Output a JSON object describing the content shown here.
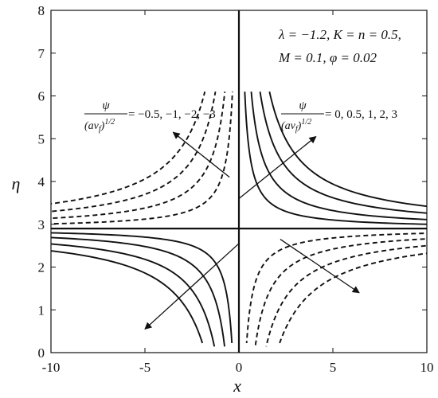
{
  "chart_data": {
    "type": "line",
    "title": "",
    "xlabel": "x",
    "ylabel": "η",
    "xlim": [
      -10,
      10
    ],
    "ylim": [
      0,
      8
    ],
    "xticks": [
      -10,
      -5,
      0,
      5,
      10
    ],
    "yticks": [
      0,
      1,
      2,
      3,
      4,
      5,
      6,
      7,
      8
    ],
    "grid": false,
    "parameters": {
      "line1": "λ = −1.2, K = n = 0.5,",
      "line2": "M = 0.1, φ = 0.02"
    },
    "annotations": [
      {
        "label_num": "ψ",
        "label_den": "(aν",
        "label_den_sub": "f",
        "label_den_tail": ")",
        "label_den_sup": "1/2",
        "label_rhs": " = −0.5, −1, −2, −3",
        "style": "dashed"
      },
      {
        "label_num": "ψ",
        "label_den": "(aν",
        "label_den_sub": "f",
        "label_den_tail": ")",
        "label_den_sup": "1/2",
        "label_rhs": " = 0, 0.5, 1, 2, 3",
        "style": "solid"
      }
    ],
    "model": {
      "stagnation_eta": 2.9
    },
    "series": [
      {
        "style": "solid",
        "psi": 0
      },
      {
        "style": "solid",
        "psi": 0.5
      },
      {
        "style": "solid",
        "psi": 1
      },
      {
        "style": "solid",
        "psi": 2
      },
      {
        "style": "solid",
        "psi": 3
      },
      {
        "style": "dashed",
        "psi": -0.5
      },
      {
        "style": "dashed",
        "psi": -1
      },
      {
        "style": "dashed",
        "psi": -2
      },
      {
        "style": "dashed",
        "psi": -3
      }
    ],
    "arrows": [
      {
        "from": [
          -0.5,
          4.1
        ],
        "to": [
          -3.5,
          5.15
        ]
      },
      {
        "from": [
          0,
          3.6
        ],
        "to": [
          4.1,
          5.05
        ]
      },
      {
        "from": [
          0,
          2.55
        ],
        "to": [
          -5.0,
          0.55
        ]
      },
      {
        "from": [
          2.2,
          2.65
        ],
        "to": [
          6.4,
          1.4
        ]
      }
    ]
  }
}
